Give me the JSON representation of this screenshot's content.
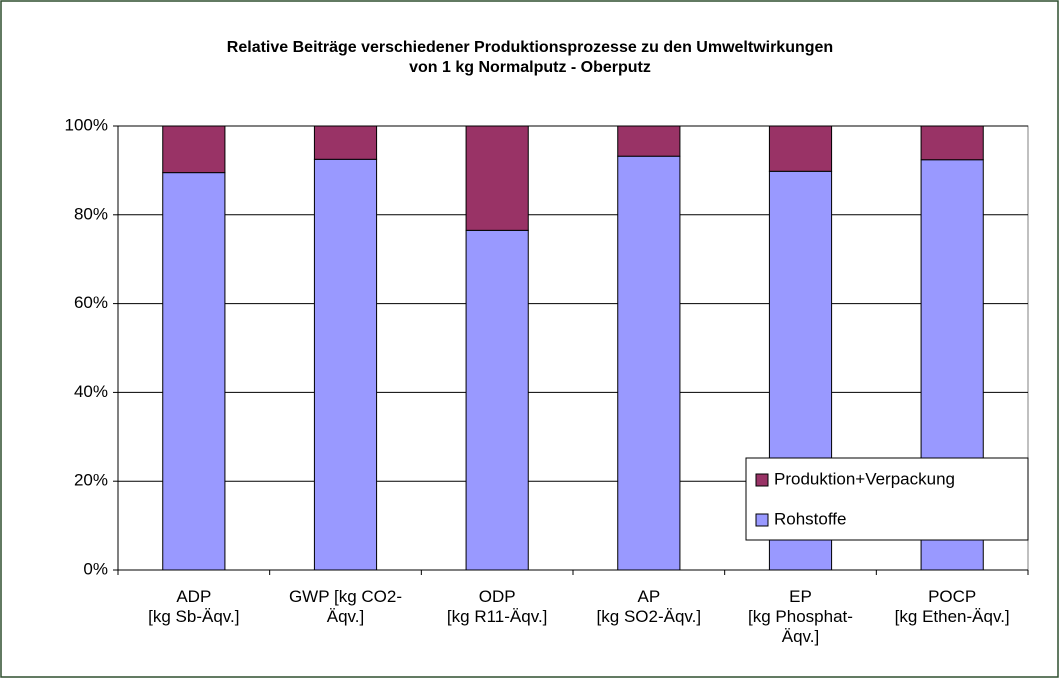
{
  "chart_data": {
    "type": "stacked_bar",
    "title": "Relative Beiträge verschiedener Produktionsprozesse zu den Umweltwirkungen\nvon 1 kg Normalputz - Oberputz",
    "categories": [
      "ADP\n[kg Sb-Äqv.]",
      "GWP [kg CO2-\nÄqv.]",
      "ODP\n[kg R11-Äqv.]",
      "AP\n[kg SO2-Äqv.]",
      "EP\n[kg Phosphat-\nÄqv.]",
      "POCP\n[kg Ethen-Äqv.]"
    ],
    "series": [
      {
        "name": "Rohstoffe",
        "color": "#9999ff",
        "values": [
          89.5,
          92.5,
          76.5,
          93.2,
          89.8,
          92.4
        ]
      },
      {
        "name": "Produktion+Verpackung",
        "color": "#993366",
        "values": [
          10.5,
          7.5,
          23.5,
          6.8,
          10.2,
          7.6
        ]
      }
    ],
    "ylim": [
      0,
      100
    ],
    "yticks": [
      {
        "value": 0,
        "label": "0%"
      },
      {
        "value": 20,
        "label": "20%"
      },
      {
        "value": 40,
        "label": "40%"
      },
      {
        "value": 60,
        "label": "60%"
      },
      {
        "value": 80,
        "label": "80%"
      },
      {
        "value": 100,
        "label": "100%"
      }
    ],
    "grid": true,
    "legend": "lower right"
  }
}
